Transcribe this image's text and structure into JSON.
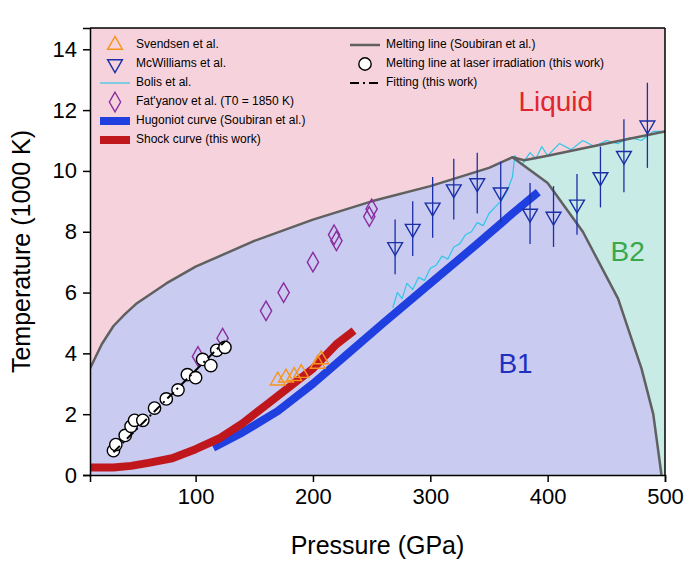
{
  "chart_data": {
    "type": "line",
    "x_label": "Pressure (GPa)",
    "y_label": "Temperature (1000 K)",
    "xlim": [
      10,
      500
    ],
    "ylim": [
      0,
      14.7
    ],
    "xticks": [
      100,
      200,
      300,
      400,
      500
    ],
    "yticks": [
      0,
      2,
      4,
      6,
      8,
      10,
      12,
      14
    ],
    "grid": false,
    "legend": "upper left",
    "series": [
      {
        "name": "Svendsen et al.",
        "type": "scatter",
        "marker": "triangle-up",
        "color": "#f7941d",
        "x": [
          170,
          177,
          184,
          190,
          204,
          207
        ],
        "values": [
          3.1,
          3.2,
          3.25,
          3.35,
          3.65,
          3.8
        ]
      },
      {
        "name": "McWilliams et al.",
        "type": "scatter",
        "marker": "triangle-down",
        "color": "#1a2fa8",
        "x": [
          270,
          285,
          302,
          320,
          340,
          360,
          385,
          405,
          425,
          445,
          465,
          485
        ],
        "values": [
          7.5,
          8.1,
          8.8,
          9.4,
          9.6,
          9.3,
          8.6,
          8.5,
          8.9,
          9.8,
          10.5,
          11.5
        ],
        "errors": [
          0.9,
          0.9,
          1.0,
          1.0,
          1.0,
          1.0,
          1.0,
          1.0,
          1.0,
          1.0,
          1.2,
          1.4
        ]
      },
      {
        "name": "Bolis et al.",
        "type": "line",
        "line_style": "thin",
        "color": "#2ec7e8",
        "x": [
          268,
          272,
          276,
          280,
          285,
          290,
          295,
          300,
          305,
          310,
          315,
          320,
          325,
          330,
          335,
          340,
          345,
          350,
          355,
          360,
          365,
          370,
          372,
          378,
          385,
          390,
          395,
          400,
          410,
          420,
          430,
          440,
          450,
          460,
          470,
          480,
          490,
          500
        ],
        "values": [
          5.5,
          6.0,
          5.8,
          6.3,
          6.1,
          6.5,
          6.4,
          6.8,
          6.9,
          7.2,
          7.1,
          7.5,
          7.6,
          7.9,
          8.0,
          8.3,
          8.2,
          8.6,
          8.8,
          9.0,
          9.3,
          9.8,
          10.5,
          10.2,
          10.6,
          10.4,
          10.8,
          10.5,
          10.9,
          10.7,
          11.0,
          10.8,
          11.0,
          10.9,
          11.1,
          11.0,
          11.3,
          11.3
        ]
      },
      {
        "name": "Fat'yanov et al. (T0 = 1850 K)",
        "type": "scatter",
        "marker": "diamond",
        "color": "#8b2d9e",
        "x": [
          102,
          123,
          160,
          175,
          200,
          218,
          220,
          248,
          250
        ],
        "values": [
          3.9,
          4.5,
          5.4,
          6.0,
          7.0,
          7.9,
          7.7,
          8.5,
          8.75
        ]
      },
      {
        "name": "Hugoniot curve (Soubiran et al.)",
        "type": "line",
        "line_style": "thick",
        "color": "#1f3fe0",
        "x": [
          115,
          140,
          170,
          200,
          230,
          260,
          300,
          340,
          370,
          392
        ],
        "values": [
          0.9,
          1.4,
          2.1,
          3.0,
          4.0,
          5.0,
          6.3,
          7.6,
          8.6,
          9.3
        ]
      },
      {
        "name": "Shock curve (this work)",
        "type": "line",
        "line_style": "thick",
        "color": "#c0171c",
        "x": [
          10,
          30,
          45,
          60,
          80,
          100,
          120,
          140,
          160,
          180,
          200,
          220,
          235
        ],
        "values": [
          0.25,
          0.25,
          0.3,
          0.4,
          0.55,
          0.85,
          1.2,
          1.7,
          2.3,
          2.9,
          3.5,
          4.3,
          4.75
        ]
      },
      {
        "name": "Melting line (Soubiran et al.)",
        "type": "line",
        "line_style": "solid",
        "color": "#606060",
        "x": [
          10,
          20,
          30,
          40,
          50,
          75,
          100,
          150,
          200,
          250,
          300,
          350,
          370,
          380,
          400,
          450,
          500
        ],
        "values": [
          3.5,
          4.3,
          4.9,
          5.3,
          5.65,
          6.3,
          6.85,
          7.7,
          8.4,
          9.0,
          9.5,
          10.1,
          10.45,
          10.35,
          10.5,
          10.9,
          11.3
        ]
      },
      {
        "name": "Melting line at laser irradiation (this work)",
        "type": "scatter",
        "marker": "circle",
        "color": "#000000",
        "x": [
          30,
          32,
          40,
          45,
          48,
          55,
          65,
          75,
          85,
          93,
          100,
          106,
          113,
          118,
          125
        ],
        "values": [
          0.8,
          1.0,
          1.3,
          1.6,
          1.8,
          1.8,
          2.2,
          2.5,
          2.8,
          3.3,
          3.2,
          3.8,
          3.6,
          4.1,
          4.2
        ]
      },
      {
        "name": "Fitting (this work)",
        "type": "line",
        "line_style": "dashdot",
        "color": "#000000",
        "x": [
          30,
          125
        ],
        "values": [
          0.75,
          4.4
        ]
      }
    ],
    "phase_boundary": {
      "color": "#606060",
      "line_style": "solid",
      "x": [
        370,
        400,
        430,
        460,
        480,
        490,
        497
      ],
      "values": [
        10.45,
        9.6,
        8.0,
        5.8,
        3.5,
        2.0,
        0
      ]
    },
    "annotations": [
      {
        "text": "Liquid",
        "color": "#e0262d"
      },
      {
        "text": "B1",
        "color": "#1f2fc0"
      },
      {
        "text": "B2",
        "color": "#3aa84a"
      }
    ]
  }
}
